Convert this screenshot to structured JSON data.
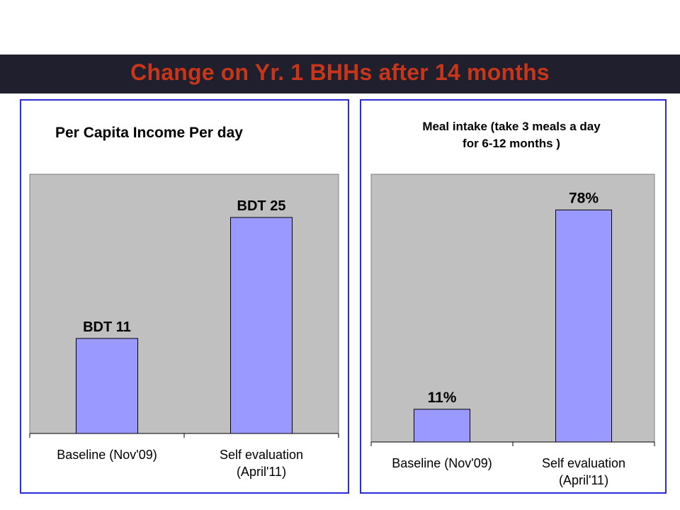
{
  "slide": {
    "title": "Change on Yr. 1 BHHs after 14 months"
  },
  "colors": {
    "title_bar": "#1f1f2e",
    "title_text": "#c8361a",
    "panel_border": "#2b2bd8",
    "plot_background": "#c0c0c0",
    "bar_fill": "#9999ff"
  },
  "chart_data": [
    {
      "type": "bar",
      "title": "Per Capita Income Per day",
      "categories": [
        "Baseline (Nov'09)",
        "Self evaluation (April'11)"
      ],
      "category_lines": [
        [
          "Baseline (Nov'09)"
        ],
        [
          "Self evaluation",
          "(April'11)"
        ]
      ],
      "values": [
        11,
        25
      ],
      "data_labels": [
        "BDT 11",
        "BDT 25"
      ],
      "unit": "BDT",
      "ylim": [
        0,
        30
      ],
      "grid": false,
      "legend": "none"
    },
    {
      "type": "bar",
      "title": "Meal intake  (take  3 meals a day for 6-12 months )",
      "title_lines": [
        "Meal intake  (take  3 meals a day",
        "for 6-12 months )"
      ],
      "categories": [
        "Baseline (Nov'09)",
        "Self evaluation (April'11)"
      ],
      "category_lines": [
        [
          "Baseline (Nov'09)"
        ],
        [
          "Self evaluation",
          "(April'11)"
        ]
      ],
      "values": [
        11,
        78
      ],
      "data_labels": [
        "11%",
        "78%"
      ],
      "unit": "%",
      "ylim": [
        0,
        90
      ],
      "grid": false,
      "legend": "none"
    }
  ]
}
